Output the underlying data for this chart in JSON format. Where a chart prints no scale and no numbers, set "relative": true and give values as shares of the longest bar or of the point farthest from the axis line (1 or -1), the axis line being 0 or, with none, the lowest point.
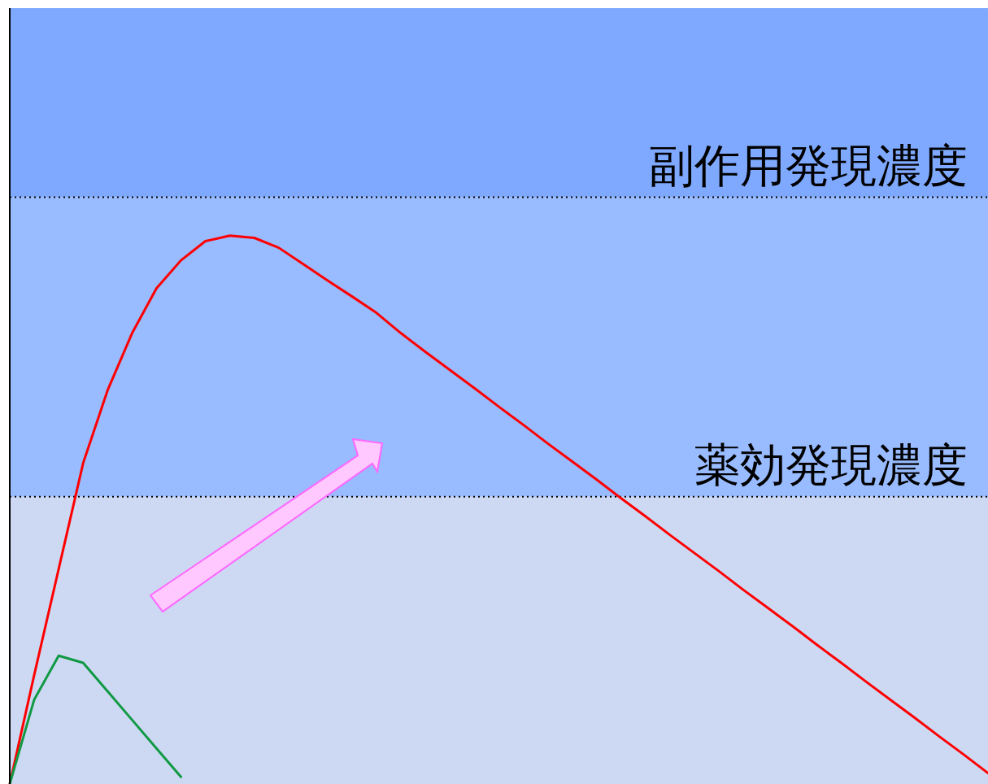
{
  "chart_data": {
    "type": "line",
    "relative": true,
    "categories": [
      null,
      null,
      null,
      null,
      null,
      null,
      null,
      null,
      null,
      null,
      null,
      null,
      null,
      null,
      null,
      null,
      null,
      null,
      null,
      null,
      null,
      null,
      null,
      null,
      null,
      null,
      null,
      null,
      null,
      null,
      null,
      null,
      null,
      null,
      null,
      null,
      null,
      null,
      null,
      null,
      null
    ],
    "series": [
      {
        "color": "#ff0000",
        "values": [
          0,
          0.199,
          0.392,
          0.585,
          0.718,
          0.822,
          0.904,
          0.955,
          0.99,
          1.0,
          0.996,
          0.978,
          0.948,
          0.918,
          0.889,
          0.859,
          0.822,
          0.788,
          0.755,
          0.722,
          0.688,
          0.655,
          0.621,
          0.588,
          0.555,
          0.521,
          0.488,
          0.454,
          0.421,
          0.388,
          0.354,
          0.321,
          0.288,
          0.254,
          0.221,
          0.187,
          0.154,
          0.121,
          0.087,
          0.054,
          0.02
        ]
      },
      {
        "color": "#119944",
        "values": [
          0,
          0.154,
          0.234,
          0.221,
          0.169,
          0.117,
          0.065,
          0.013,
          null,
          null,
          null,
          null,
          null,
          null,
          null,
          null,
          null,
          null,
          null,
          null,
          null,
          null,
          null,
          null,
          null,
          null,
          null,
          null,
          null,
          null,
          null,
          null,
          null,
          null,
          null,
          null,
          null,
          null,
          null,
          null,
          null
        ]
      }
    ],
    "bands": [
      {
        "axis": "y",
        "from": 0,
        "to": 0.524,
        "color": "#cdd9f3"
      },
      {
        "axis": "y",
        "from": 0.524,
        "to": 1.07,
        "color": "#99bbff",
        "label": "薬効発現濃度"
      },
      {
        "axis": "y",
        "from": 1.07,
        "to": 1.415,
        "color": "#7fa9ff",
        "label": "副作用発現濃度"
      }
    ],
    "ref_lines": [
      {
        "axis": "y",
        "value": 0.524,
        "line_style": "dotted"
      },
      {
        "axis": "y",
        "value": 1.07,
        "line_style": "dotted"
      }
    ],
    "marker": "none",
    "line_style": "solid"
  }
}
